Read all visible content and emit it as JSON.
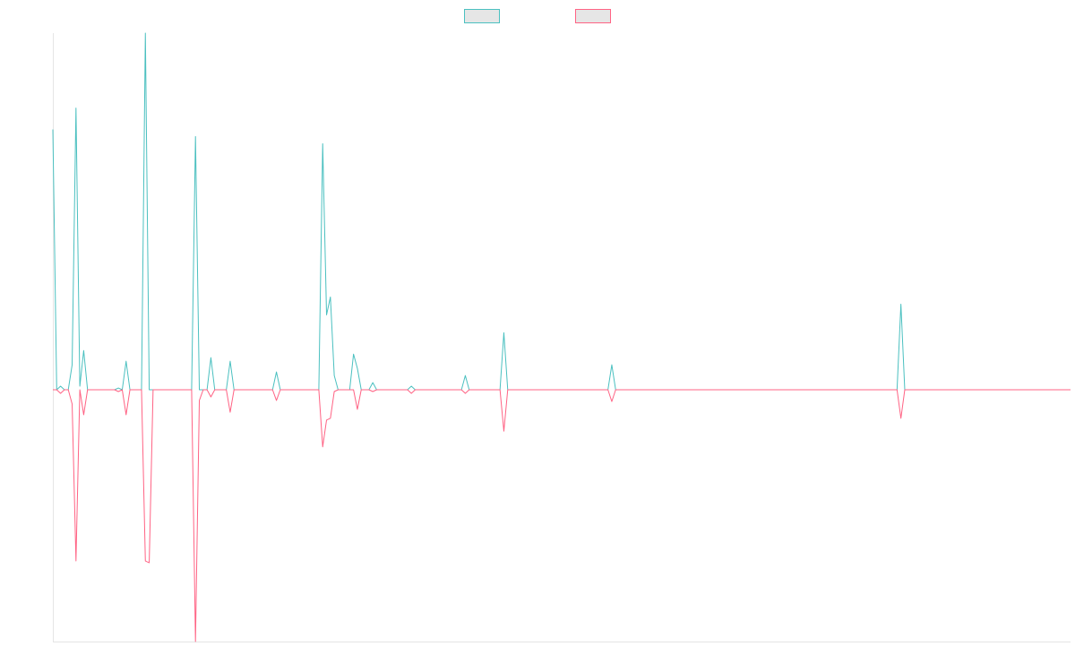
{
  "chart_data": {
    "type": "line",
    "legend": "top",
    "x": [
      0,
      1,
      2,
      3,
      4,
      5,
      6,
      7,
      8,
      9,
      16,
      17,
      18,
      19,
      20,
      23,
      24,
      25,
      26,
      36,
      37,
      38,
      39,
      40,
      41,
      42,
      45,
      46,
      47,
      57,
      58,
      59,
      69,
      70,
      71,
      72,
      73,
      74,
      77,
      78,
      79,
      80,
      82,
      83,
      84,
      92,
      93,
      94,
      106,
      107,
      108,
      116,
      117,
      118,
      144,
      145,
      146,
      219,
      220,
      221,
      264
    ],
    "xlim": [
      0,
      264
    ],
    "ylim": [
      -70.6,
      100
    ],
    "series": [
      {
        "color": "#4bc0c0",
        "values": [
          73,
          0,
          1,
          0,
          0,
          7,
          79,
          1,
          11,
          0,
          0,
          0.5,
          0,
          8,
          0,
          0,
          100,
          0,
          0,
          0,
          71,
          0,
          0,
          0,
          9,
          0,
          0,
          8,
          0,
          0,
          5,
          0,
          0,
          69,
          21,
          26,
          4,
          0,
          0,
          10,
          6,
          0,
          0,
          2,
          0,
          0,
          1,
          0,
          0,
          4,
          0,
          0,
          16,
          0,
          0,
          7,
          0,
          0,
          24,
          0,
          0
        ]
      },
      {
        "color": "#ff6384",
        "values": [
          0,
          0,
          -1,
          0,
          0,
          -4,
          -48,
          0,
          -7,
          0,
          0,
          -0.5,
          0,
          -7,
          0,
          0,
          -48,
          -48.5,
          0,
          0,
          -70.6,
          -3,
          0,
          0,
          -2,
          0,
          0,
          -6.3,
          0,
          0,
          -3,
          0,
          0,
          -16,
          -8.5,
          -8,
          -0.5,
          0,
          0,
          0,
          -5.5,
          0,
          0,
          -0.5,
          0,
          0,
          -1,
          0,
          0,
          -1,
          0,
          0,
          -11.6,
          0,
          0,
          -3.3,
          0,
          0,
          -8,
          0,
          0
        ]
      }
    ]
  }
}
